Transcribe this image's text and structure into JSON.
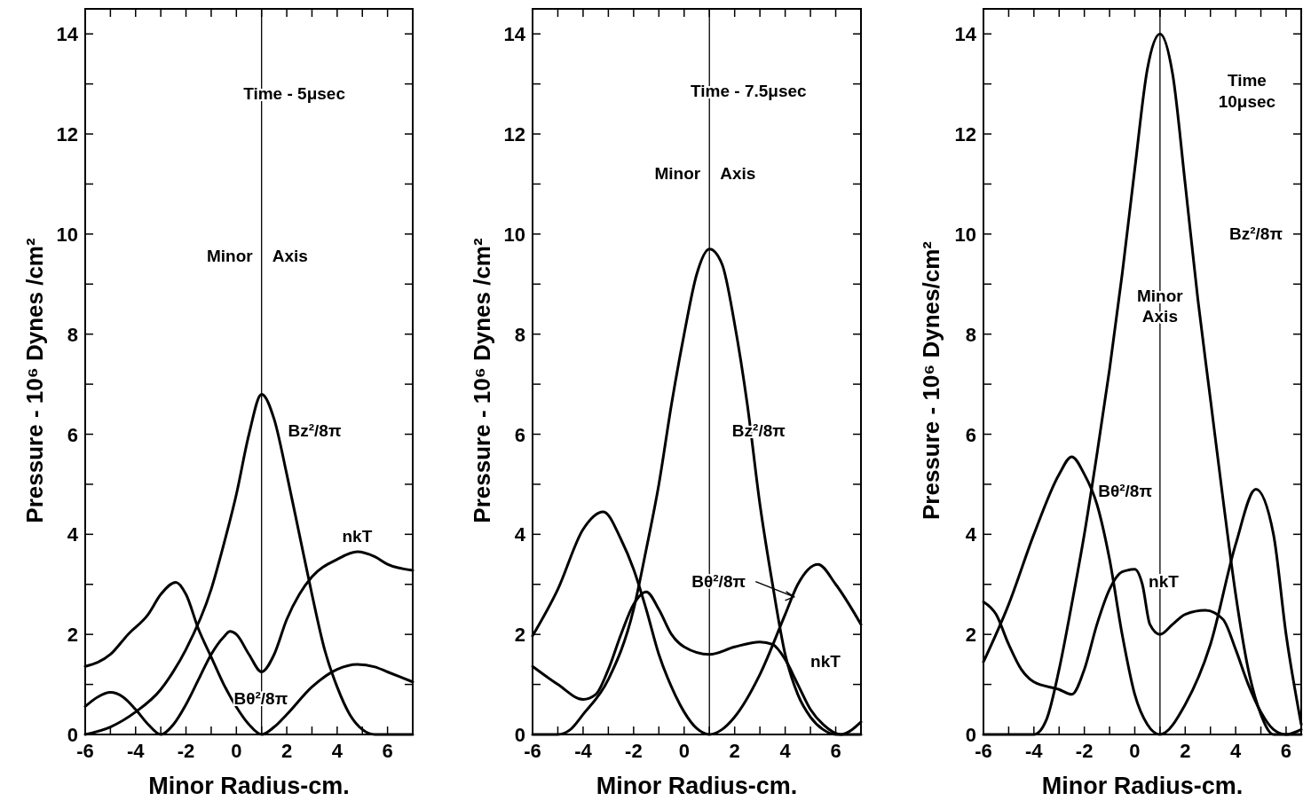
{
  "chart_data": [
    {
      "type": "line",
      "xlabel": "Minor  Radius-cm.",
      "ylabel": "Pressure - 10⁶ Dynes /cm²",
      "xlim": [
        -6,
        7
      ],
      "ylim": [
        0,
        14.5
      ],
      "xticks": [
        -6,
        {
          "value": -5,
          "label": null
        },
        -4,
        {
          "value": -3,
          "label": null
        },
        -2,
        {
          "value": -1,
          "label": null
        },
        0,
        {
          "value": 1,
          "label": null
        },
        2,
        {
          "value": 3,
          "label": null
        },
        4,
        {
          "value": 5,
          "label": null
        },
        6,
        {
          "value": 7,
          "label": null
        }
      ],
      "yticks": [
        0,
        {
          "value": 1,
          "label": null
        },
        2,
        {
          "value": 3,
          "label": null
        },
        4,
        {
          "value": 5,
          "label": null
        },
        6,
        {
          "value": 7,
          "label": null
        },
        8,
        {
          "value": 9,
          "label": null
        },
        10,
        {
          "value": 11,
          "label": null
        },
        12,
        {
          "value": 13,
          "label": null
        },
        14
      ],
      "ref_lines": [
        {
          "axis": "x",
          "value": 1,
          "label": "Minor  Axis",
          "color": "#000000"
        }
      ],
      "annotations": [
        "Time - 5μsec"
      ],
      "series": [
        {
          "name": "Bz²/8π",
          "color": "#000000",
          "x": [
            -6,
            -5,
            -4,
            -3,
            -2.5,
            -2,
            -1,
            -0.5,
            0,
            0.5,
            1,
            1.5,
            2,
            2.5,
            3,
            3.5,
            4,
            4.5,
            5,
            5.5,
            7
          ],
          "values": [
            0,
            0.15,
            0.45,
            0.9,
            1.26,
            1.7,
            2.9,
            3.8,
            4.8,
            6.0,
            6.8,
            6.3,
            5.2,
            4.0,
            2.8,
            1.7,
            0.95,
            0.4,
            0.1,
            0,
            0
          ]
        },
        {
          "name": "Bθ²/8π",
          "color": "#000000",
          "x": [
            -6,
            -5,
            -4.3,
            -3.5,
            -3,
            -2.4,
            -2,
            -1.5,
            -1,
            -0.5,
            0,
            0.5,
            1,
            1.5,
            2,
            3,
            4,
            4.8,
            5.5,
            6,
            7
          ],
          "values": [
            1.36,
            1.6,
            2.0,
            2.4,
            2.8,
            3.04,
            2.8,
            2.1,
            1.55,
            1.0,
            0.55,
            0.2,
            0,
            0.15,
            0.4,
            0.95,
            1.3,
            1.4,
            1.35,
            1.25,
            1.05
          ]
        },
        {
          "name": "nkT",
          "color": "#000000",
          "x": [
            -6,
            -5.5,
            -5,
            -4.5,
            -4,
            -3.5,
            -3,
            -2.5,
            -2,
            -1.5,
            -1,
            -0.5,
            -0.25,
            0,
            0.5,
            1,
            1.5,
            2,
            2.5,
            3,
            4,
            4.8,
            5.5,
            6,
            7
          ],
          "values": [
            0.56,
            0.75,
            0.84,
            0.75,
            0.5,
            0.2,
            0,
            0.2,
            0.6,
            1.1,
            1.6,
            1.95,
            2.06,
            2.0,
            1.6,
            1.25,
            1.6,
            2.3,
            2.8,
            3.15,
            3.5,
            3.65,
            3.55,
            3.4,
            3.28
          ]
        }
      ]
    },
    {
      "type": "line",
      "xlabel": "Minor Radius-cm.",
      "ylabel": "Pressure - 10⁶  Dynes /cm²",
      "xlim": [
        -6,
        7
      ],
      "ylim": [
        0,
        14.5
      ],
      "xticks": [
        -6,
        {
          "value": -5,
          "label": null
        },
        -4,
        {
          "value": -3,
          "label": null
        },
        -2,
        {
          "value": -1,
          "label": null
        },
        0,
        {
          "value": 1,
          "label": null
        },
        2,
        {
          "value": 3,
          "label": null
        },
        4,
        {
          "value": 5,
          "label": null
        },
        6,
        {
          "value": 7,
          "label": null
        }
      ],
      "yticks": [
        0,
        {
          "value": 1,
          "label": null
        },
        2,
        {
          "value": 3,
          "label": null
        },
        4,
        {
          "value": 5,
          "label": null
        },
        6,
        {
          "value": 7,
          "label": null
        },
        8,
        {
          "value": 9,
          "label": null
        },
        10,
        {
          "value": 11,
          "label": null
        },
        12,
        {
          "value": 13,
          "label": null
        },
        14
      ],
      "ref_lines": [
        {
          "axis": "x",
          "value": 1,
          "label": "Minor  Axis",
          "color": "#000000"
        }
      ],
      "annotations": [
        "Time - 7.5μsec"
      ],
      "series": [
        {
          "name": "Bz²/8π",
          "color": "#000000",
          "x": [
            -6,
            -5,
            -4.5,
            -4,
            -3,
            -2,
            -1.5,
            -1,
            -0.5,
            0,
            0.5,
            1,
            1.5,
            2,
            2.5,
            3,
            3.5,
            4,
            4.5,
            5,
            5.5,
            6,
            7
          ],
          "values": [
            0,
            0,
            0.1,
            0.4,
            1.1,
            2.5,
            3.7,
            5.0,
            6.6,
            8.0,
            9.2,
            9.7,
            9.4,
            8.2,
            6.6,
            4.6,
            3.0,
            1.6,
            0.8,
            0.35,
            0.1,
            0,
            0
          ]
        },
        {
          "name": "Bθ²/8π",
          "color": "#000000",
          "x": [
            -6,
            -5,
            -4,
            -3.2,
            -2.5,
            -2,
            -1.5,
            -1,
            -0.5,
            0,
            0.5,
            1,
            1.5,
            2,
            3,
            4,
            4.5,
            5.3,
            6,
            7
          ],
          "values": [
            1.97,
            2.9,
            4.1,
            4.45,
            3.9,
            3.3,
            2.5,
            1.6,
            0.95,
            0.45,
            0.12,
            0,
            0.1,
            0.35,
            1.2,
            2.4,
            3.0,
            3.4,
            3.0,
            2.2
          ]
        },
        {
          "name": "nkT",
          "color": "#000000",
          "x": [
            -6,
            -5,
            -4,
            -3.5,
            -3,
            -2.5,
            -2,
            -1.5,
            -1,
            -0.5,
            0,
            1,
            2,
            3,
            3.5,
            4,
            4.5,
            5,
            5.5,
            6.2,
            7
          ],
          "values": [
            1.36,
            1.0,
            0.7,
            0.8,
            1.3,
            2.0,
            2.6,
            2.85,
            2.5,
            2.0,
            1.75,
            1.6,
            1.75,
            1.85,
            1.8,
            1.5,
            1.0,
            0.5,
            0.2,
            0,
            0.25
          ]
        }
      ]
    },
    {
      "type": "line",
      "xlabel": "Minor Radius-cm.",
      "ylabel": "Pressure - 10⁶ Dynes/cm²",
      "xlim": [
        -6,
        6.6
      ],
      "ylim": [
        0,
        14.5
      ],
      "xticks": [
        -6,
        {
          "value": -5,
          "label": null
        },
        -4,
        {
          "value": -3,
          "label": null
        },
        -2,
        {
          "value": -1,
          "label": null
        },
        0,
        {
          "value": 1,
          "label": null
        },
        2,
        {
          "value": 3,
          "label": null
        },
        4,
        {
          "value": 5,
          "label": null
        },
        6
      ],
      "yticks": [
        0,
        {
          "value": 1,
          "label": null
        },
        2,
        {
          "value": 3,
          "label": null
        },
        4,
        {
          "value": 5,
          "label": null
        },
        6,
        {
          "value": 7,
          "label": null
        },
        8,
        {
          "value": 9,
          "label": null
        },
        10,
        {
          "value": 11,
          "label": null
        },
        12,
        {
          "value": 13,
          "label": null
        },
        14
      ],
      "ref_lines": [
        {
          "axis": "x",
          "value": 1,
          "label": "Minor Axis",
          "color": "#000000"
        }
      ],
      "annotations": [
        "Time 10μsec"
      ],
      "series": [
        {
          "name": "Bz²/8π",
          "color": "#000000",
          "x": [
            -6,
            -4,
            -3.5,
            -3,
            -2.5,
            -2,
            -1.5,
            -1,
            -0.5,
            0,
            0.5,
            1,
            1.5,
            2,
            2.5,
            3,
            3.5,
            4,
            4.5,
            5,
            5.5,
            6.6
          ],
          "values": [
            0,
            0,
            0.3,
            1.3,
            2.6,
            4.0,
            5.6,
            7.3,
            9.2,
            11.3,
            13.3,
            14.0,
            13.2,
            11.0,
            8.7,
            6.7,
            4.7,
            2.8,
            1.3,
            0.4,
            0,
            0
          ]
        },
        {
          "name": "Bθ²/8π",
          "color": "#000000",
          "x": [
            -6,
            -5,
            -4,
            -3,
            -2.5,
            -2,
            -1.5,
            -1,
            -0.5,
            0,
            0.5,
            1,
            2,
            3,
            4,
            4.8,
            5.5,
            6,
            6.6
          ],
          "values": [
            1.45,
            2.6,
            4.0,
            5.2,
            5.55,
            5.2,
            4.6,
            3.5,
            2.0,
            0.8,
            0.2,
            0,
            0.6,
            1.8,
            3.8,
            4.9,
            4.0,
            2.0,
            0.2
          ]
        },
        {
          "name": "nkT",
          "color": "#000000",
          "x": [
            -6,
            -5.5,
            -5,
            -4.5,
            -4,
            -3,
            -2.5,
            -2,
            -1.5,
            -1,
            -0.5,
            0,
            0.3,
            0.6,
            1,
            1.5,
            2,
            2.8,
            3.5,
            4,
            4.5,
            5,
            5.5,
            6,
            6.6
          ],
          "values": [
            2.65,
            2.4,
            1.8,
            1.3,
            1.05,
            0.9,
            0.8,
            1.3,
            2.2,
            2.9,
            3.25,
            3.3,
            3.0,
            2.2,
            2.0,
            2.2,
            2.4,
            2.48,
            2.3,
            1.7,
            1.0,
            0.45,
            0.1,
            0,
            0.1
          ]
        }
      ]
    }
  ]
}
